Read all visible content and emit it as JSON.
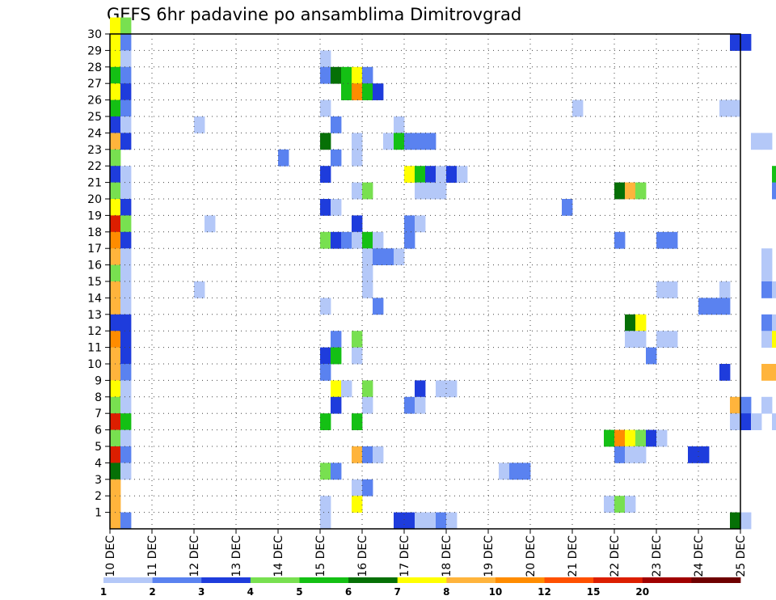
{
  "chart_data": {
    "type": "heatmap",
    "title": "GEFS 6hr padavine po ansamblima Dimitrovgrad",
    "xlabel": "",
    "ylabel": "",
    "x_ticks": [
      "10 DEC",
      "11 DEC",
      "12 DEC",
      "13 DEC",
      "14 DEC",
      "15 DEC",
      "16 DEC",
      "17 DEC",
      "18 DEC",
      "19 DEC",
      "20 DEC",
      "21 DEC",
      "22 DEC",
      "23 DEC",
      "24 DEC",
      "25 DEC"
    ],
    "x_range_days": [
      10,
      25
    ],
    "y_ticks": [
      1,
      2,
      3,
      4,
      5,
      6,
      7,
      8,
      9,
      10,
      11,
      12,
      13,
      14,
      15,
      16,
      17,
      18,
      19,
      20,
      21,
      22,
      23,
      24,
      25,
      26,
      27,
      28,
      29,
      30
    ],
    "y_range": [
      0,
      30
    ],
    "grid": true,
    "step_days": 0.25,
    "legend": {
      "placement": "bottom",
      "labels": [
        "1",
        "2",
        "3",
        "4",
        "5",
        "6",
        "7",
        "8",
        "10",
        "12",
        "15",
        "20"
      ],
      "colors": [
        "#b4c8f8",
        "#5a82f0",
        "#1e3cdc",
        "#78e050",
        "#14c014",
        "#067006",
        "#ffff00",
        "#ffb43c",
        "#ff8c00",
        "#ff5000",
        "#dc1e00",
        "#a00000",
        "#6e0000"
      ]
    },
    "cells": [
      [
        10.0,
        30,
        "#ffff00"
      ],
      [
        10.25,
        30,
        "#78e050"
      ],
      [
        10.0,
        29,
        "#ffff00"
      ],
      [
        10.25,
        29,
        "#5a82f0"
      ],
      [
        24.75,
        29,
        "#1e3cdc"
      ],
      [
        24.75,
        29,
        "#1e3cdc"
      ],
      [
        25.0,
        29,
        "#1e3cdc"
      ],
      [
        10.0,
        28,
        "#ffff00"
      ],
      [
        10.25,
        28,
        "#b4c8f8"
      ],
      [
        15.0,
        28,
        "#b4c8f8"
      ],
      [
        10.0,
        27,
        "#14c014"
      ],
      [
        10.25,
        27,
        "#5a82f0"
      ],
      [
        15.0,
        27,
        "#5a82f0"
      ],
      [
        15.25,
        27,
        "#067006"
      ],
      [
        15.5,
        27,
        "#14c014"
      ],
      [
        15.75,
        27,
        "#ffff00"
      ],
      [
        16.0,
        27,
        "#5a82f0"
      ],
      [
        10.0,
        26,
        "#ffff00"
      ],
      [
        10.25,
        26,
        "#1e3cdc"
      ],
      [
        15.5,
        26,
        "#14c014"
      ],
      [
        15.75,
        26,
        "#ff8c00"
      ],
      [
        16.0,
        26,
        "#14c014"
      ],
      [
        16.25,
        26,
        "#1e3cdc"
      ],
      [
        10.0,
        25,
        "#14c014"
      ],
      [
        10.25,
        25,
        "#5a82f0"
      ],
      [
        15.0,
        25,
        "#b4c8f8"
      ],
      [
        21.0,
        25,
        "#b4c8f8"
      ],
      [
        24.5,
        25,
        "#b4c8f8"
      ],
      [
        24.75,
        25,
        "#b4c8f8"
      ],
      [
        10.0,
        24,
        "#1e3cdc"
      ],
      [
        10.25,
        24,
        "#b4c8f8"
      ],
      [
        12.0,
        24,
        "#b4c8f8"
      ],
      [
        15.25,
        24,
        "#5a82f0"
      ],
      [
        16.75,
        24,
        "#b4c8f8"
      ],
      [
        10.0,
        23,
        "#ffb43c"
      ],
      [
        10.25,
        23,
        "#1e3cdc"
      ],
      [
        15.0,
        23,
        "#067006"
      ],
      [
        15.75,
        23,
        "#b4c8f8"
      ],
      [
        16.5,
        23,
        "#b4c8f8"
      ],
      [
        16.75,
        23,
        "#14c014"
      ],
      [
        17.0,
        23,
        "#5a82f0"
      ],
      [
        17.25,
        23,
        "#5a82f0"
      ],
      [
        17.5,
        23,
        "#5a82f0"
      ],
      [
        25.25,
        23,
        "#b4c8f8"
      ],
      [
        25.5,
        23,
        "#b4c8f8"
      ],
      [
        10.0,
        22,
        "#78e050"
      ],
      [
        14.0,
        22,
        "#5a82f0"
      ],
      [
        15.25,
        22,
        "#5a82f0"
      ],
      [
        15.75,
        22,
        "#b4c8f8"
      ],
      [
        10.0,
        21,
        "#1e3cdc"
      ],
      [
        10.25,
        21,
        "#b4c8f8"
      ],
      [
        15.0,
        21,
        "#1e3cdc"
      ],
      [
        17.0,
        21,
        "#ffff00"
      ],
      [
        17.25,
        21,
        "#14c014"
      ],
      [
        17.5,
        21,
        "#1e3cdc"
      ],
      [
        17.75,
        21,
        "#b4c8f8"
      ],
      [
        18.0,
        21,
        "#1e3cdc"
      ],
      [
        18.25,
        21,
        "#b4c8f8"
      ],
      [
        25.75,
        21,
        "#14c014"
      ],
      [
        10.0,
        20,
        "#78e050"
      ],
      [
        10.25,
        20,
        "#b4c8f8"
      ],
      [
        15.75,
        20,
        "#b4c8f8"
      ],
      [
        16.0,
        20,
        "#78e050"
      ],
      [
        17.25,
        20,
        "#b4c8f8"
      ],
      [
        17.5,
        20,
        "#b4c8f8"
      ],
      [
        17.75,
        20,
        "#b4c8f8"
      ],
      [
        22.0,
        20,
        "#067006"
      ],
      [
        22.25,
        20,
        "#ffb43c"
      ],
      [
        22.5,
        20,
        "#78e050"
      ],
      [
        25.75,
        20,
        "#5a82f0"
      ],
      [
        10.0,
        19,
        "#ffff00"
      ],
      [
        10.25,
        19,
        "#1e3cdc"
      ],
      [
        15.0,
        19,
        "#1e3cdc"
      ],
      [
        15.25,
        19,
        "#b4c8f8"
      ],
      [
        20.75,
        19,
        "#5a82f0"
      ],
      [
        10.0,
        18,
        "#dc1e00"
      ],
      [
        10.25,
        18,
        "#78e050"
      ],
      [
        12.25,
        18,
        "#b4c8f8"
      ],
      [
        15.75,
        18,
        "#1e3cdc"
      ],
      [
        17.0,
        18,
        "#5a82f0"
      ],
      [
        17.25,
        18,
        "#b4c8f8"
      ],
      [
        10.0,
        17,
        "#ff8c00"
      ],
      [
        10.25,
        17,
        "#1e3cdc"
      ],
      [
        15.0,
        17,
        "#78e050"
      ],
      [
        15.25,
        17,
        "#1e3cdc"
      ],
      [
        15.5,
        17,
        "#5a82f0"
      ],
      [
        15.75,
        17,
        "#b4c8f8"
      ],
      [
        16.0,
        17,
        "#14c014"
      ],
      [
        16.25,
        17,
        "#b4c8f8"
      ],
      [
        17.0,
        17,
        "#5a82f0"
      ],
      [
        22.0,
        17,
        "#5a82f0"
      ],
      [
        23.0,
        17,
        "#5a82f0"
      ],
      [
        23.25,
        17,
        "#5a82f0"
      ],
      [
        10.0,
        16,
        "#ffb43c"
      ],
      [
        10.25,
        16,
        "#b4c8f8"
      ],
      [
        16.0,
        16,
        "#b4c8f8"
      ],
      [
        16.25,
        16,
        "#5a82f0"
      ],
      [
        16.5,
        16,
        "#5a82f0"
      ],
      [
        16.75,
        16,
        "#b4c8f8"
      ],
      [
        25.5,
        16,
        "#b4c8f8"
      ],
      [
        10.0,
        15,
        "#78e050"
      ],
      [
        10.25,
        15,
        "#b4c8f8"
      ],
      [
        16.0,
        15,
        "#b4c8f8"
      ],
      [
        25.5,
        15,
        "#b4c8f8"
      ],
      [
        10.0,
        14,
        "#ffb43c"
      ],
      [
        10.25,
        14,
        "#b4c8f8"
      ],
      [
        12.0,
        14,
        "#b4c8f8"
      ],
      [
        16.0,
        14,
        "#b4c8f8"
      ],
      [
        23.0,
        14,
        "#b4c8f8"
      ],
      [
        23.25,
        14,
        "#b4c8f8"
      ],
      [
        24.5,
        14,
        "#b4c8f8"
      ],
      [
        25.5,
        14,
        "#5a82f0"
      ],
      [
        25.75,
        14,
        "#b4c8f8"
      ],
      [
        10.0,
        13,
        "#ffb43c"
      ],
      [
        10.25,
        13,
        "#b4c8f8"
      ],
      [
        15.0,
        13,
        "#b4c8f8"
      ],
      [
        16.25,
        13,
        "#5a82f0"
      ],
      [
        24.0,
        13,
        "#5a82f0"
      ],
      [
        24.25,
        13,
        "#5a82f0"
      ],
      [
        24.5,
        13,
        "#5a82f0"
      ],
      [
        10.0,
        12,
        "#1e3cdc"
      ],
      [
        10.25,
        12,
        "#1e3cdc"
      ],
      [
        22.25,
        12,
        "#067006"
      ],
      [
        22.5,
        12,
        "#ffff00"
      ],
      [
        25.5,
        12,
        "#5a82f0"
      ],
      [
        25.75,
        12,
        "#b4c8f8"
      ],
      [
        10.0,
        11,
        "#ff8c00"
      ],
      [
        10.25,
        11,
        "#1e3cdc"
      ],
      [
        15.25,
        11,
        "#5a82f0"
      ],
      [
        15.75,
        11,
        "#78e050"
      ],
      [
        22.25,
        11,
        "#b4c8f8"
      ],
      [
        22.5,
        11,
        "#b4c8f8"
      ],
      [
        23.0,
        11,
        "#b4c8f8"
      ],
      [
        23.25,
        11,
        "#b4c8f8"
      ],
      [
        25.5,
        11,
        "#b4c8f8"
      ],
      [
        25.75,
        11,
        "#ffff00"
      ],
      [
        10.0,
        10,
        "#ffb43c"
      ],
      [
        10.25,
        10,
        "#1e3cdc"
      ],
      [
        15.0,
        10,
        "#1e3cdc"
      ],
      [
        15.25,
        10,
        "#14c014"
      ],
      [
        15.75,
        10,
        "#b4c8f8"
      ],
      [
        22.75,
        10,
        "#5a82f0"
      ],
      [
        10.0,
        9,
        "#ffb43c"
      ],
      [
        10.25,
        9,
        "#5a82f0"
      ],
      [
        15.0,
        9,
        "#5a82f0"
      ],
      [
        24.5,
        9,
        "#1e3cdc"
      ],
      [
        25.5,
        9,
        "#ffb43c"
      ],
      [
        25.75,
        9,
        "#ffb43c"
      ],
      [
        10.0,
        8,
        "#ffff00"
      ],
      [
        10.25,
        8,
        "#b4c8f8"
      ],
      [
        15.25,
        8,
        "#ffff00"
      ],
      [
        15.5,
        8,
        "#b4c8f8"
      ],
      [
        16.0,
        8,
        "#78e050"
      ],
      [
        17.25,
        8,
        "#1e3cdc"
      ],
      [
        17.75,
        8,
        "#b4c8f8"
      ],
      [
        18.0,
        8,
        "#b4c8f8"
      ],
      [
        10.0,
        7,
        "#78e050"
      ],
      [
        10.25,
        7,
        "#b4c8f8"
      ],
      [
        15.25,
        7,
        "#1e3cdc"
      ],
      [
        16.0,
        7,
        "#b4c8f8"
      ],
      [
        17.0,
        7,
        "#5a82f0"
      ],
      [
        17.25,
        7,
        "#b4c8f8"
      ],
      [
        24.75,
        7,
        "#ffb43c"
      ],
      [
        25.0,
        7,
        "#5a82f0"
      ],
      [
        25.5,
        7,
        "#b4c8f8"
      ],
      [
        10.0,
        6,
        "#dc1e00"
      ],
      [
        10.25,
        6,
        "#14c014"
      ],
      [
        15.0,
        6,
        "#14c014"
      ],
      [
        15.75,
        6,
        "#14c014"
      ],
      [
        24.75,
        6,
        "#b4c8f8"
      ],
      [
        25.0,
        6,
        "#1e3cdc"
      ],
      [
        25.25,
        6,
        "#b4c8f8"
      ],
      [
        25.75,
        6,
        "#b4c8f8"
      ],
      [
        10.0,
        5,
        "#78e050"
      ],
      [
        10.25,
        5,
        "#b4c8f8"
      ],
      [
        21.75,
        5,
        "#14c014"
      ],
      [
        22.0,
        5,
        "#ff8c00"
      ],
      [
        22.25,
        5,
        "#ffff00"
      ],
      [
        22.5,
        5,
        "#78e050"
      ],
      [
        22.75,
        5,
        "#1e3cdc"
      ],
      [
        23.0,
        5,
        "#b4c8f8"
      ],
      [
        10.0,
        4,
        "#dc1e00"
      ],
      [
        10.25,
        4,
        "#5a82f0"
      ],
      [
        15.75,
        4,
        "#ffb43c"
      ],
      [
        16.0,
        4,
        "#5a82f0"
      ],
      [
        16.25,
        4,
        "#b4c8f8"
      ],
      [
        22.0,
        4,
        "#5a82f0"
      ],
      [
        22.25,
        4,
        "#b4c8f8"
      ],
      [
        22.5,
        4,
        "#b4c8f8"
      ],
      [
        23.75,
        4,
        "#1e3cdc"
      ],
      [
        24.0,
        4,
        "#1e3cdc"
      ],
      [
        10.0,
        3,
        "#067006"
      ],
      [
        10.25,
        3,
        "#b4c8f8"
      ],
      [
        15.0,
        3,
        "#78e050"
      ],
      [
        15.25,
        3,
        "#5a82f0"
      ],
      [
        19.25,
        3,
        "#b4c8f8"
      ],
      [
        19.5,
        3,
        "#5a82f0"
      ],
      [
        19.75,
        3,
        "#5a82f0"
      ],
      [
        10.0,
        2,
        "#ffb43c"
      ],
      [
        15.75,
        2,
        "#b4c8f8"
      ],
      [
        16.0,
        2,
        "#5a82f0"
      ],
      [
        10.0,
        1,
        "#ffb43c"
      ],
      [
        15.0,
        1,
        "#b4c8f8"
      ],
      [
        15.75,
        1,
        "#ffff00"
      ],
      [
        21.75,
        1,
        "#b4c8f8"
      ],
      [
        22.0,
        1,
        "#78e050"
      ],
      [
        22.25,
        1,
        "#b4c8f8"
      ],
      [
        10.0,
        0,
        "#ffb43c"
      ],
      [
        10.25,
        0,
        "#5a82f0"
      ],
      [
        15.0,
        0,
        "#b4c8f8"
      ],
      [
        16.75,
        0,
        "#1e3cdc"
      ],
      [
        17.0,
        0,
        "#1e3cdc"
      ],
      [
        17.25,
        0,
        "#b4c8f8"
      ],
      [
        17.5,
        0,
        "#b4c8f8"
      ],
      [
        17.75,
        0,
        "#5a82f0"
      ],
      [
        18.0,
        0,
        "#b4c8f8"
      ],
      [
        24.75,
        0,
        "#067006"
      ],
      [
        25.0,
        0,
        "#b4c8f8"
      ]
    ]
  }
}
